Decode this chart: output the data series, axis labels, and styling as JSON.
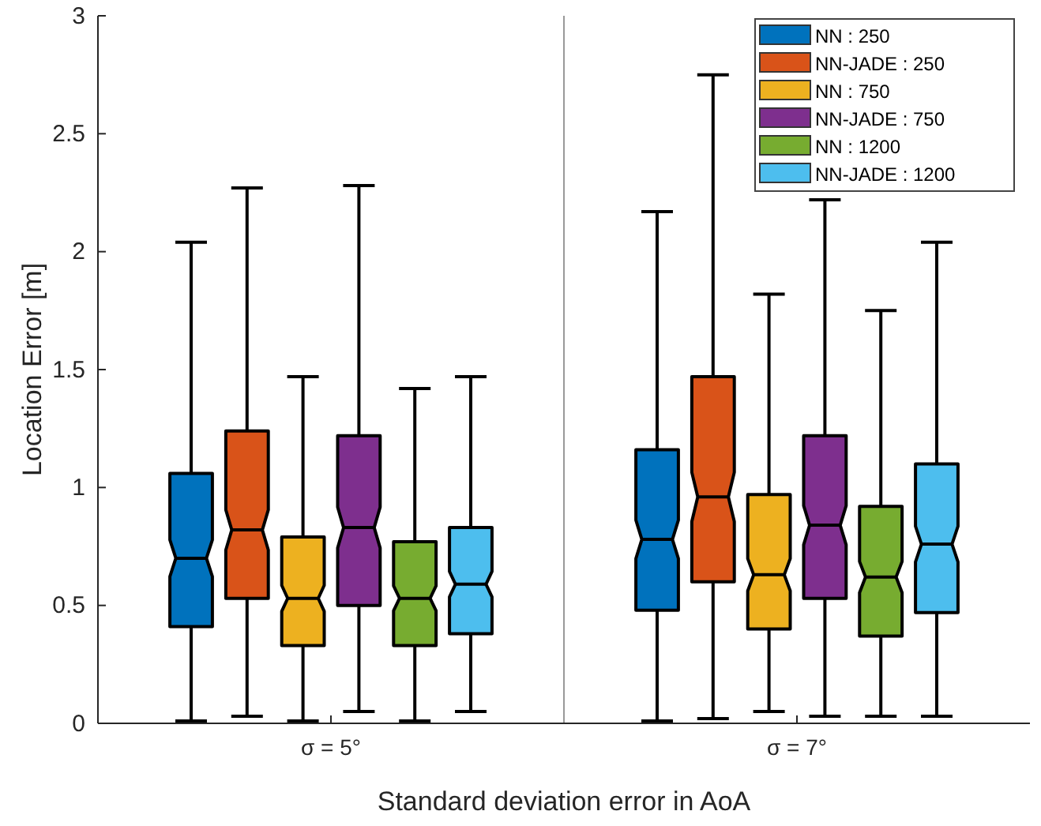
{
  "chart_data": {
    "type": "box",
    "xlabel": "Standard deviation error in AoA",
    "ylabel": "Location Error [m]",
    "categories": [
      "σ = 5°",
      "σ = 7°"
    ],
    "ylim": [
      0,
      3
    ],
    "yticks": [
      0,
      0.5,
      1,
      1.5,
      2,
      2.5,
      3
    ],
    "legend": "top right",
    "grid": false,
    "series": [
      {
        "name": "NN : 250",
        "color": "#0072bd",
        "boxes": [
          {
            "low": 0.01,
            "q1": 0.41,
            "median": 0.7,
            "q3": 1.06,
            "high": 2.04
          },
          {
            "low": 0.01,
            "q1": 0.48,
            "median": 0.78,
            "q3": 1.16,
            "high": 2.17
          }
        ]
      },
      {
        "name": "NN-JADE : 250",
        "color": "#d95319",
        "boxes": [
          {
            "low": 0.03,
            "q1": 0.53,
            "median": 0.82,
            "q3": 1.24,
            "high": 2.27
          },
          {
            "low": 0.02,
            "q1": 0.6,
            "median": 0.96,
            "q3": 1.47,
            "high": 2.75
          }
        ]
      },
      {
        "name": "NN : 750",
        "color": "#edb120",
        "boxes": [
          {
            "low": 0.01,
            "q1": 0.33,
            "median": 0.53,
            "q3": 0.79,
            "high": 1.47
          },
          {
            "low": 0.05,
            "q1": 0.4,
            "median": 0.63,
            "q3": 0.97,
            "high": 1.82
          }
        ]
      },
      {
        "name": "NN-JADE : 750",
        "color": "#7e2f8e",
        "boxes": [
          {
            "low": 0.05,
            "q1": 0.5,
            "median": 0.83,
            "q3": 1.22,
            "high": 2.28
          },
          {
            "low": 0.03,
            "q1": 0.53,
            "median": 0.84,
            "q3": 1.22,
            "high": 2.22
          }
        ]
      },
      {
        "name": "NN : 1200",
        "color": "#77ac30",
        "boxes": [
          {
            "low": 0.01,
            "q1": 0.33,
            "median": 0.53,
            "q3": 0.77,
            "high": 1.42
          },
          {
            "low": 0.03,
            "q1": 0.37,
            "median": 0.62,
            "q3": 0.92,
            "high": 1.75
          }
        ]
      },
      {
        "name": "NN-JADE : 1200",
        "color": "#4dbeee",
        "boxes": [
          {
            "low": 0.05,
            "q1": 0.38,
            "median": 0.59,
            "q3": 0.83,
            "high": 1.47
          },
          {
            "low": 0.03,
            "q1": 0.47,
            "median": 0.76,
            "q3": 1.1,
            "high": 2.04
          }
        ]
      }
    ]
  }
}
